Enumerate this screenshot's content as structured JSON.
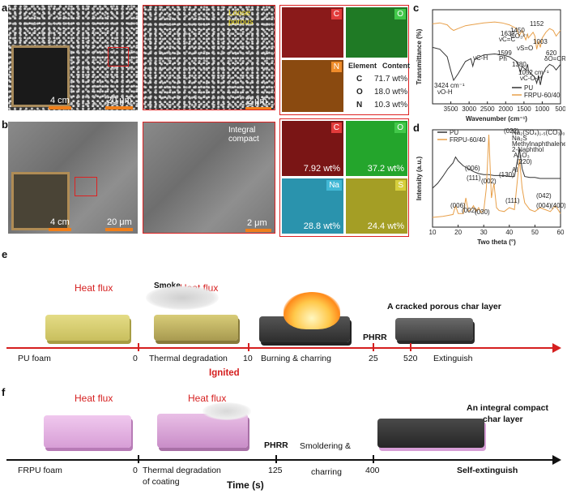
{
  "panels": {
    "a": {
      "letter": "a",
      "scale_large": "4 cm",
      "scale_mid": "20 μm",
      "scale_zoom": "2 μm",
      "annotation": "Loose porous",
      "maps": [
        {
          "el": "C",
          "color": "#e23b3b"
        },
        {
          "el": "O",
          "color": "#42c84a"
        },
        {
          "el": "N",
          "color": "#f08c2a"
        }
      ],
      "table": {
        "head_element": "Element",
        "head_content": "Content",
        "rows": [
          {
            "el": "C",
            "val": "71.7 wt%"
          },
          {
            "el": "O",
            "val": "18.0 wt%"
          },
          {
            "el": "N",
            "val": "10.3 wt%"
          }
        ]
      }
    },
    "b": {
      "letter": "b",
      "scale_large": "4 cm",
      "scale_mid": "20 μm",
      "scale_zoom": "2 μm",
      "annotation": "Integral compact",
      "maps": [
        {
          "el": "C",
          "wt": "7.92 wt%",
          "color": "#e23b3b"
        },
        {
          "el": "O",
          "wt": "37.2 wt%",
          "color": "#42c84a"
        },
        {
          "el": "Na",
          "wt": "28.8 wt%",
          "color": "#42b9d6"
        },
        {
          "el": "S",
          "wt": "24.4 wt%",
          "color": "#d6cf3c"
        }
      ]
    },
    "c": {
      "letter": "c"
    },
    "d": {
      "letter": "d"
    },
    "e": {
      "letter": "e",
      "heat_flux": "Heat flux",
      "smoke": "Smoke",
      "top_label": "A cracked porous char layer",
      "stages": [
        "PU foam",
        "Thermal degradation",
        "Burning & charring",
        "Extinguish"
      ],
      "times": [
        "0",
        "10",
        "25",
        "520"
      ],
      "ignited": "Ignited",
      "phrr": "PHRR"
    },
    "f": {
      "letter": "f",
      "heat_flux": "Heat flux",
      "top_label_1": "An integral compact",
      "top_label_2": "char layer",
      "stages": [
        "FRPU foam",
        "Thermal degradation",
        "of coating",
        "Smoldering &",
        "charring",
        "Self-extinguish"
      ],
      "times": [
        "0",
        "125",
        "400"
      ],
      "phrr": "PHRR",
      "axis_title": "Time (s)"
    }
  },
  "chart_data": [
    {
      "type": "line",
      "xlabel": "Wavenumber (cm⁻¹)",
      "ylabel": "Transmittance (%)",
      "xlim": [
        4000,
        500
      ],
      "x_ticks": [
        "3500",
        "3000",
        "2500",
        "2000",
        "1500",
        "1000",
        "500"
      ],
      "legend": [
        "PU",
        "FRPU-60/40"
      ],
      "series": [
        {
          "name": "PU",
          "color": "#333333",
          "x": [
            4000,
            3800,
            3600,
            3500,
            3424,
            3300,
            3100,
            2950,
            2900,
            2850,
            2600,
            2300,
            2100,
            1900,
            1700,
            1632,
            1599,
            1550,
            1450,
            1400,
            1380,
            1250,
            1200,
            1152,
            1100,
            1052,
            1000,
            900,
            800,
            700,
            620,
            500
          ],
          "y": [
            60,
            58,
            50,
            35,
            25,
            32,
            45,
            48,
            40,
            47,
            52,
            53,
            52,
            50,
            45,
            38,
            33,
            40,
            36,
            42,
            35,
            30,
            28,
            22,
            30,
            20,
            30,
            38,
            42,
            40,
            36,
            42
          ]
        },
        {
          "name": "FRPU-60/40",
          "color": "#e8a04a",
          "x": [
            4000,
            3800,
            3600,
            3500,
            3424,
            3300,
            3100,
            2950,
            2600,
            2300,
            2100,
            1900,
            1700,
            1632,
            1550,
            1450,
            1400,
            1380,
            1250,
            1200,
            1152,
            1100,
            1052,
            1000,
            900,
            800,
            700,
            620,
            500
          ],
          "y": [
            85,
            86,
            84,
            80,
            78,
            80,
            83,
            84,
            86,
            87,
            86,
            84,
            80,
            72,
            78,
            68,
            74,
            70,
            76,
            72,
            58,
            66,
            60,
            70,
            76,
            80,
            78,
            72,
            78
          ]
        }
      ],
      "annotations": [
        "3424 cm⁻¹",
        "νO-H",
        "νC-H",
        "1632",
        "νC=C",
        "1450",
        "CO₃²⁻",
        "1599",
        "Ph",
        "νS=O",
        "1380",
        "1052 cm⁻¹",
        "νC-O-H",
        "1152",
        "1003",
        "620",
        "δO=CR"
      ]
    },
    {
      "type": "line",
      "xlabel": "Two theta (°)",
      "ylabel": "Intensity (a.u.)",
      "xlim": [
        10,
        60
      ],
      "x_ticks": [
        "10",
        "20",
        "30",
        "40",
        "50",
        "60"
      ],
      "legend": [
        "PU",
        "FRPU-60/40"
      ],
      "series": [
        {
          "name": "PU",
          "color": "#333333",
          "x": [
            10,
            12,
            14,
            16,
            18,
            19,
            20,
            22,
            24,
            26,
            28,
            30,
            32,
            34,
            36,
            38,
            40,
            42,
            44,
            45,
            46,
            48,
            50,
            52,
            54,
            56,
            58,
            60
          ],
          "y": [
            40,
            45,
            52,
            60,
            66,
            72,
            68,
            63,
            60,
            57,
            55,
            54,
            54,
            53,
            53,
            53,
            52,
            52,
            80,
            60,
            52,
            51,
            51,
            50,
            50,
            50,
            50,
            50
          ]
        },
        {
          "name": "FRPU-60/40",
          "color": "#e8a04a",
          "x": [
            10,
            14,
            16,
            18,
            19,
            20,
            22,
            23,
            24,
            25,
            26,
            27,
            28,
            29,
            30,
            31,
            32,
            33,
            34,
            35,
            36,
            38,
            40,
            42,
            44,
            45,
            46,
            48,
            50,
            52,
            54,
            56,
            58,
            60
          ],
          "y": [
            10,
            11,
            12,
            13,
            22,
            14,
            14,
            30,
            16,
            18,
            22,
            16,
            20,
            15,
            17,
            40,
            95,
            30,
            45,
            20,
            17,
            16,
            20,
            18,
            70,
            40,
            25,
            18,
            16,
            20,
            18,
            16,
            22,
            14
          ]
        }
      ],
      "annotations": [
        "(006)",
        "(111)",
        "(002)",
        "(022)",
        "(130)",
        "Al",
        "Al₂O₃",
        "(220)",
        "(006)",
        "(002)",
        "(030)",
        "(111)",
        "(042)",
        "(004)",
        "(400)",
        "Na₂(SO₄)₁.₅(CO₃)₀.₄₉",
        "Na₂S",
        "Methylnaphthalene",
        "2-Naphthol"
      ]
    }
  ]
}
